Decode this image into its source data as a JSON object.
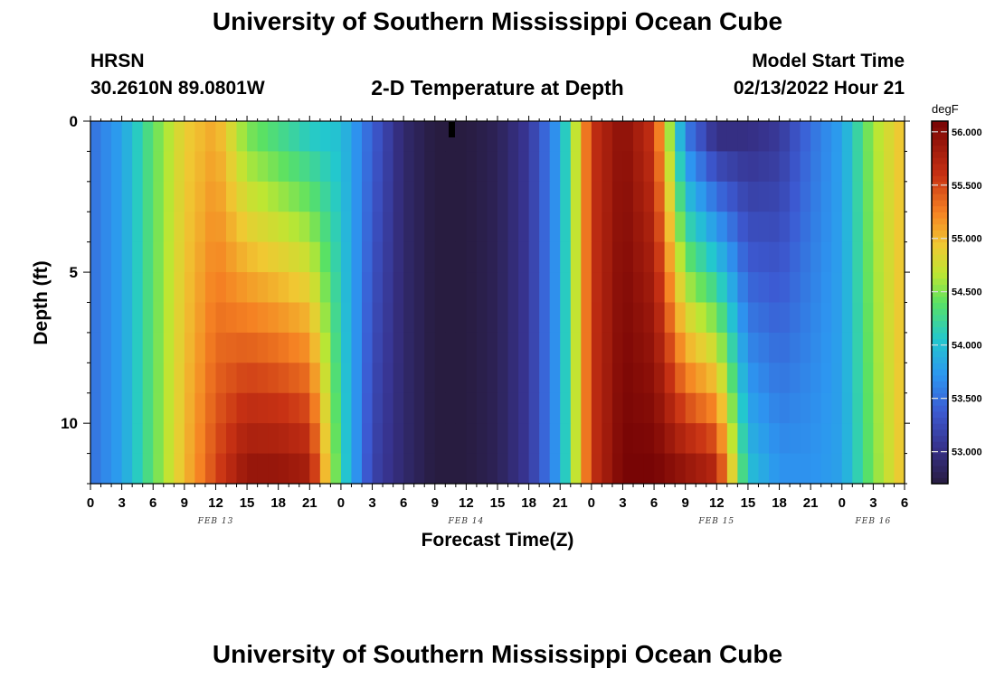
{
  "page": {
    "title": "University of Southern Mississippi Ocean Cube",
    "station": "HRSN",
    "location": "30.2610N  89.0801W",
    "plot_title": "2-D Temperature at Depth",
    "model_start_label": "Model Start Time",
    "model_start_value": "02/13/2022 Hour 21",
    "footer_title": "University of Southern Mississippi Ocean Cube"
  },
  "chart_data": {
    "type": "heatmap",
    "title": "2-D Temperature at Depth",
    "xlabel": "Forecast Time(Z)",
    "ylabel": "Depth (ft)",
    "colorbar_unit": "degF",
    "x_tick_labels": [
      "0",
      "3",
      "6",
      "9",
      "12",
      "15",
      "18",
      "21",
      "0",
      "3",
      "6",
      "9",
      "12",
      "15",
      "18",
      "21",
      "0",
      "3",
      "6",
      "9",
      "12",
      "15",
      "18",
      "21",
      "0",
      "3",
      "6"
    ],
    "day_labels": [
      {
        "label": "FEB 13",
        "hour": 12
      },
      {
        "label": "FEB 14",
        "hour": 36
      },
      {
        "label": "FEB 15",
        "hour": 60
      },
      {
        "label": "FEB 16",
        "hour": 75
      }
    ],
    "xlim_hours": [
      0,
      78
    ],
    "y_ticks": [
      0,
      5,
      10
    ],
    "ylim_ft": [
      0,
      12
    ],
    "colorbar_range": [
      52.7,
      56.1
    ],
    "colorbar_ticks": [
      "53.000",
      "53.500",
      "54.000",
      "54.500",
      "55.000",
      "55.500",
      "56.000"
    ],
    "colorbar_tick_values": [
      53.0,
      53.5,
      54.0,
      54.5,
      55.0,
      55.5,
      56.0
    ],
    "depth_levels_ft": [
      0.5,
      1.5,
      2.5,
      3.5,
      4.5,
      5.5,
      6.5,
      7.5,
      8.5,
      9.5,
      10.5,
      11.5
    ],
    "temperature_profile_surface": {
      "hours": [
        0,
        3,
        6,
        9,
        12,
        15,
        18,
        21,
        24,
        27,
        30,
        33,
        36,
        39,
        42,
        45,
        48,
        51,
        54,
        57,
        60,
        63,
        66,
        69,
        72,
        75,
        78
      ],
      "degF": [
        53.5,
        53.8,
        54.4,
        54.9,
        55.1,
        54.5,
        54.3,
        54.1,
        54.0,
        53.4,
        52.9,
        52.7,
        52.7,
        52.8,
        53.1,
        53.8,
        55.6,
        56.0,
        55.6,
        53.6,
        53.0,
        53.0,
        53.1,
        53.5,
        53.8,
        54.6,
        55.0
      ]
    },
    "temperature_profile_bottom": {
      "hours": [
        0,
        3,
        6,
        9,
        12,
        15,
        18,
        21,
        24,
        27,
        30,
        33,
        36,
        39,
        42,
        45,
        48,
        51,
        54,
        57,
        60,
        63,
        66,
        69,
        72,
        75,
        78
      ],
      "degF": [
        53.5,
        53.8,
        54.4,
        55.0,
        55.5,
        55.9,
        55.9,
        55.8,
        54.2,
        53.2,
        52.9,
        52.7,
        52.7,
        52.8,
        53.1,
        53.8,
        55.6,
        56.1,
        56.1,
        55.9,
        55.7,
        54.0,
        53.7,
        53.7,
        53.8,
        54.5,
        55.0
      ]
    },
    "thermocline_front_hours": {
      "first_cooling_start_top": 15,
      "first_cooling_start_bottom": 22,
      "second_cooling_start_top": 57,
      "second_cooling_start_bottom": 64
    }
  }
}
